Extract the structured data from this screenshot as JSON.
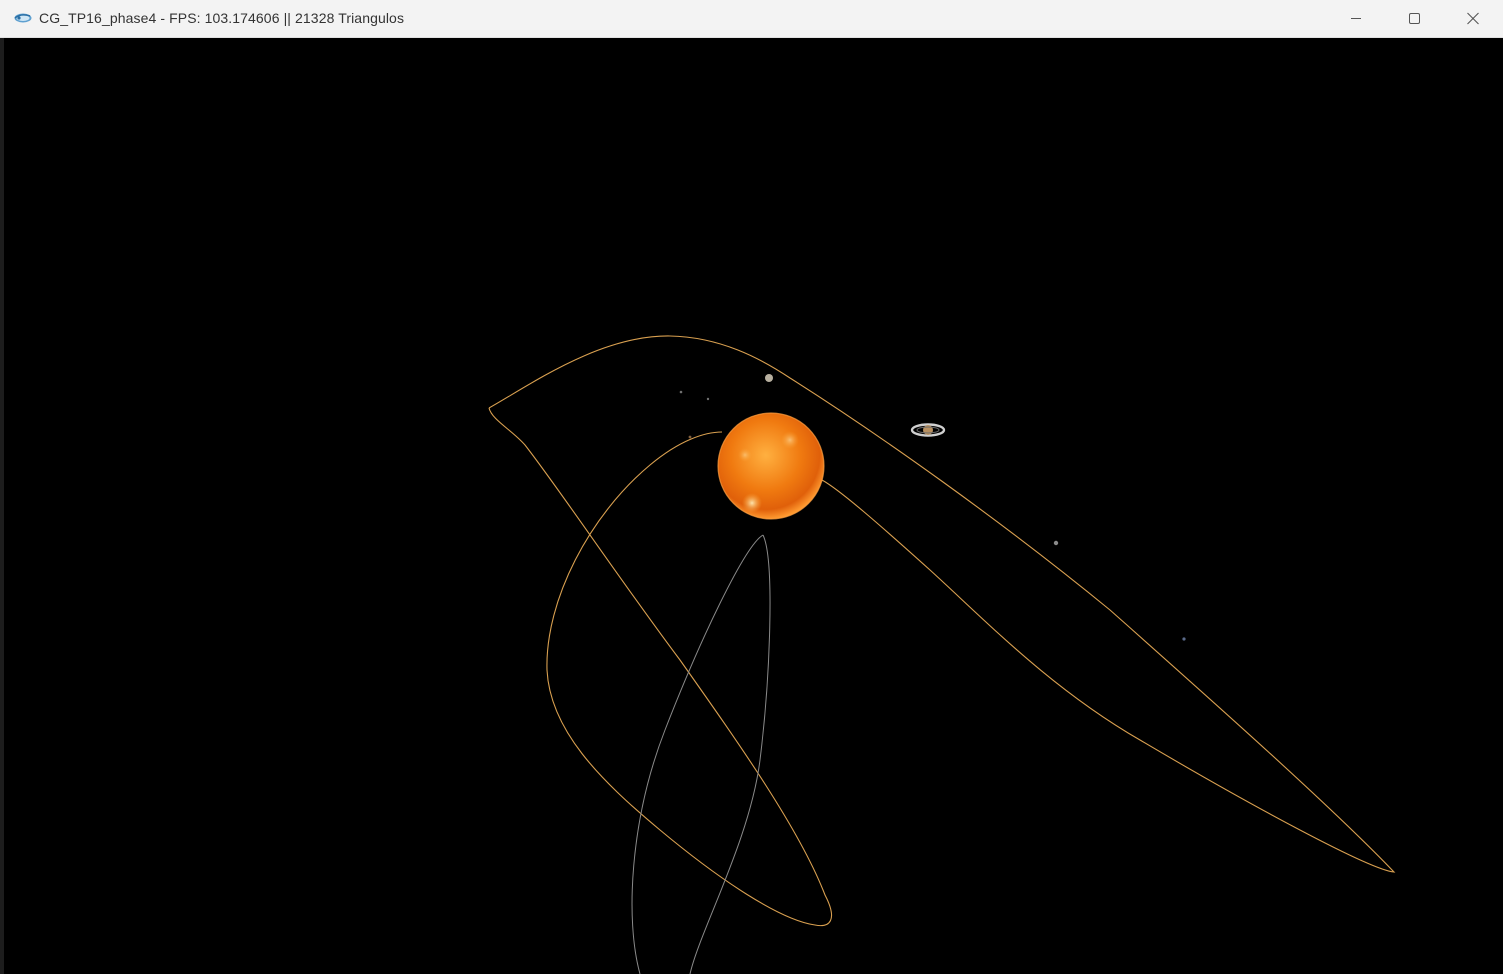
{
  "window": {
    "title": "CG_TP16_phase4 - FPS: 103.174606 || 21328 Triangulos",
    "icon": "app-icon",
    "controls": {
      "minimize": "minimize-icon",
      "maximize": "maximize-icon",
      "close": "close-icon"
    }
  },
  "scene": {
    "background": "#000000",
    "sun_color": "#f07a10",
    "orbit_color_outer": "#d9a050",
    "orbit_color_inner": "#8a8a8a"
  }
}
